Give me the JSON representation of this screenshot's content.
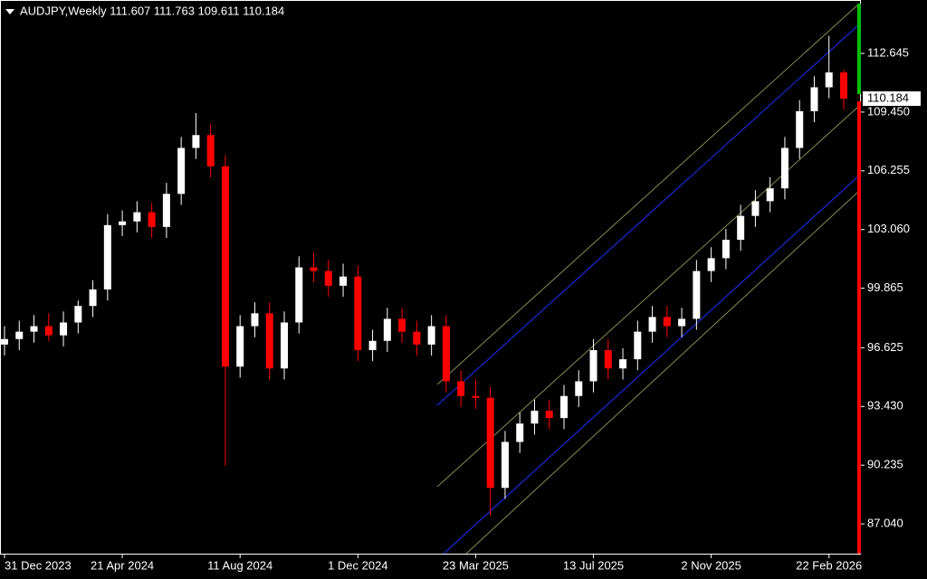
{
  "chart_data": {
    "type": "candlestick",
    "title": "AUDJPY,Weekly  111.607 111.763 109.611 110.184",
    "categories": [
      "31 Dec 2023",
      null,
      null,
      null,
      null,
      null,
      null,
      null,
      "21 Apr 2024",
      null,
      null,
      null,
      null,
      null,
      null,
      null,
      "11 Aug 2024",
      null,
      null,
      null,
      null,
      null,
      null,
      null,
      "1 Dec 2024",
      null,
      null,
      null,
      null,
      null,
      null,
      null,
      "23 Mar 2025",
      null,
      null,
      null,
      null,
      null,
      null,
      null,
      "13 Jul 2025",
      null,
      null,
      null,
      null,
      null,
      null,
      null,
      "2 Nov 2025",
      null,
      null,
      null,
      null,
      null,
      null,
      null,
      "22 Feb 2026",
      null
    ],
    "open": [
      96.8,
      97.1,
      97.5,
      97.8,
      97.3,
      98.0,
      98.9,
      99.8,
      103.3,
      103.5,
      104.0,
      103.2,
      105.0,
      107.5,
      108.2,
      106.5,
      95.6,
      97.8,
      98.5,
      95.5,
      98.0,
      101.0,
      100.8,
      100.0,
      100.5,
      96.5,
      97.0,
      98.2,
      97.5,
      96.8,
      97.8,
      94.8,
      94.0,
      93.9,
      89.0,
      91.5,
      92.5,
      93.2,
      92.8,
      94.0,
      94.8,
      96.5,
      95.5,
      96.0,
      97.5,
      98.3,
      97.8,
      98.2,
      100.8,
      101.5,
      102.5,
      103.8,
      104.6,
      105.3,
      107.5,
      109.5,
      110.8,
      111.607
    ],
    "high": [
      97.8,
      98.1,
      98.4,
      98.5,
      98.6,
      99.2,
      100.3,
      103.9,
      104.1,
      104.6,
      104.5,
      105.6,
      108.1,
      109.4,
      108.8,
      107.1,
      98.4,
      99.1,
      99.1,
      98.6,
      101.6,
      101.8,
      101.4,
      101.2,
      101.1,
      97.6,
      98.8,
      98.8,
      98.1,
      98.4,
      98.4,
      95.4,
      94.9,
      94.5,
      92.1,
      93.1,
      93.8,
      93.8,
      94.6,
      95.4,
      97.1,
      97.1,
      96.6,
      98.1,
      98.9,
      98.9,
      98.8,
      101.4,
      102.1,
      103.1,
      104.4,
      105.2,
      105.9,
      108.1,
      110.1,
      111.4,
      113.6,
      111.763
    ],
    "low": [
      96.2,
      96.5,
      96.9,
      97.0,
      96.7,
      97.4,
      98.3,
      99.2,
      102.7,
      102.9,
      102.6,
      102.6,
      104.4,
      106.9,
      105.9,
      90.2,
      95.0,
      97.2,
      94.9,
      94.9,
      97.4,
      100.2,
      99.4,
      99.4,
      95.9,
      95.9,
      96.4,
      96.9,
      96.2,
      96.2,
      94.2,
      93.4,
      93.3,
      87.5,
      88.4,
      90.9,
      91.9,
      92.2,
      92.2,
      93.4,
      94.2,
      94.9,
      94.9,
      95.4,
      96.9,
      97.2,
      97.2,
      97.6,
      100.2,
      100.9,
      101.9,
      103.2,
      104.0,
      104.7,
      106.9,
      108.9,
      110.2,
      109.611
    ],
    "close": [
      97.1,
      97.5,
      97.8,
      97.3,
      98.0,
      98.9,
      99.8,
      103.3,
      103.5,
      104.0,
      103.2,
      105.0,
      107.5,
      108.2,
      106.5,
      95.6,
      97.8,
      98.5,
      95.5,
      98.0,
      101.0,
      100.8,
      100.0,
      100.5,
      96.5,
      97.0,
      98.2,
      97.5,
      96.8,
      97.8,
      94.8,
      94.0,
      93.9,
      89.0,
      91.5,
      92.5,
      93.2,
      92.8,
      94.0,
      94.8,
      96.5,
      95.5,
      96.0,
      97.5,
      98.3,
      97.8,
      98.2,
      100.8,
      101.5,
      102.5,
      103.8,
      104.6,
      105.3,
      107.5,
      109.5,
      110.8,
      111.607,
      110.184
    ],
    "up_color": "#ffffff",
    "down_color": "#ff0000",
    "last_price": 110.184,
    "ylim": [
      85.42,
      115.55
    ],
    "yticks": [
      {
        "value": 87.04,
        "label": "87.040"
      },
      {
        "value": 90.235,
        "label": "90.235"
      },
      {
        "value": 93.43,
        "label": "93.430"
      },
      {
        "value": 96.625,
        "label": "96.625"
      },
      {
        "value": 99.865,
        "label": "99.865"
      },
      {
        "value": 103.06,
        "label": "103.060"
      },
      {
        "value": 106.255,
        "label": "106.255"
      },
      {
        "value": 109.45,
        "label": "109.450"
      },
      {
        "value": 112.645,
        "label": "112.645"
      }
    ]
  }
}
